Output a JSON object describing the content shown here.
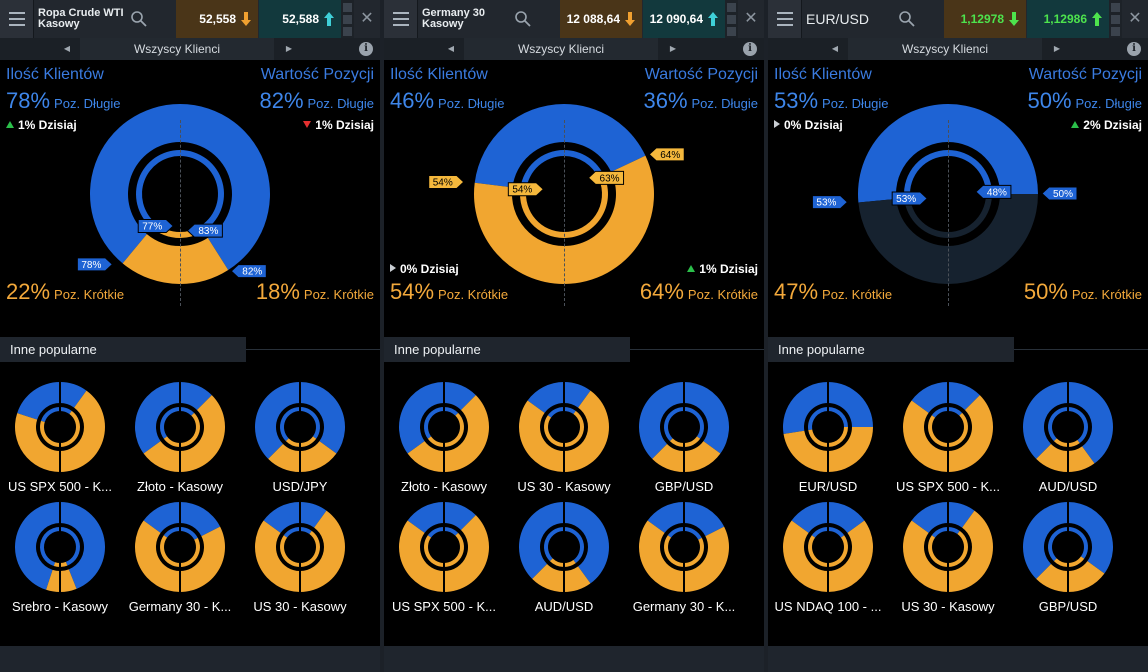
{
  "panels": [
    {
      "title": "Ropa Crude WTI Kasowy",
      "title_lines": [
        "Ropa Crude WTI",
        "Kasowy"
      ],
      "title_style": "small",
      "sell_price": "52,558",
      "buy_price": "52,588",
      "buy_color": "white",
      "sell_arrow": "orange-down",
      "buy_arrow": "teal-up",
      "client_filter": "Wszyscy Klienci",
      "left_header": "Ilość Klientów",
      "right_header": "Wartość Pozycji",
      "left_long_pct": "78%",
      "left_long_label": "Poz. Długie",
      "right_long_pct": "82%",
      "right_long_label": "Poz. Długie",
      "left_short_pct": "22%",
      "left_short_label": "Poz. Krótkie",
      "right_short_pct": "18%",
      "right_short_label": "Poz. Krótkie",
      "left_today": "1% Dzisiaj",
      "left_today_dir": "up",
      "left_today_pos": "top",
      "right_today": "1% Dzisiaj",
      "right_today_dir": "down",
      "right_today_pos": "top",
      "donut": {
        "outer_left_long": 78,
        "outer_right_long": 82,
        "inner_left_long": 77,
        "inner_right_long": 83,
        "inner_left_label": "77%",
        "inner_right_label": "83%",
        "outer_left_label": "78%",
        "outer_right_label": "82%",
        "color_long": "#1e63d4",
        "color_short": "#f1a630"
      },
      "other_title": "Inne popularne",
      "others": [
        {
          "label": "US SPX 500 - K...",
          "left_long": 40,
          "right_long": 20
        },
        {
          "label": "Złoto - Kasowy",
          "left_long": 70,
          "right_long": 25
        },
        {
          "label": "USD/JPY",
          "left_long": 75,
          "right_long": 70
        },
        {
          "label": "Srebro - Kasowy",
          "left_long": 90,
          "right_long": 88
        },
        {
          "label": "Germany 30 - K...",
          "left_long": 30,
          "right_long": 35
        },
        {
          "label": "US 30 - Kasowy",
          "left_long": 30,
          "right_long": 20
        }
      ]
    },
    {
      "title": "Germany 30 Kasowy",
      "title_lines": [
        "Germany 30",
        "Kasowy"
      ],
      "title_style": "small",
      "sell_price": "12 088,64",
      "buy_price": "12 090,64",
      "buy_color": "white",
      "sell_arrow": "orange-down",
      "buy_arrow": "teal-up",
      "client_filter": "Wszyscy Klienci",
      "left_header": "Ilość Klientów",
      "right_header": "Wartość Pozycji",
      "left_long_pct": "46%",
      "left_long_label": "Poz. Długie",
      "right_long_pct": "36%",
      "right_long_label": "Poz. Długie",
      "left_short_pct": "54%",
      "left_short_label": "Poz. Krótkie",
      "right_short_pct": "64%",
      "right_short_label": "Poz. Krótkie",
      "left_today": "0% Dzisiaj",
      "left_today_dir": "neutral",
      "left_today_pos": "bottom",
      "right_today": "1% Dzisiaj",
      "right_today_dir": "up",
      "right_today_pos": "bottom",
      "donut": {
        "outer_left_long": 46,
        "outer_right_long": 36,
        "inner_left_long": 46,
        "inner_right_long": 37,
        "inner_left_label": "54%",
        "inner_right_label": "63%",
        "outer_left_label": "54%",
        "outer_right_label": "64%",
        "color_long": "#1e63d4",
        "color_short": "#f1a630"
      },
      "other_title": "Inne popularne",
      "others": [
        {
          "label": "Złoto - Kasowy",
          "left_long": 70,
          "right_long": 25
        },
        {
          "label": "US 30 - Kasowy",
          "left_long": 30,
          "right_long": 20
        },
        {
          "label": "GBP/USD",
          "left_long": 75,
          "right_long": 70
        },
        {
          "label": "US SPX 500 - K...",
          "left_long": 30,
          "right_long": 25
        },
        {
          "label": "AUD/USD",
          "left_long": 75,
          "right_long": 80
        },
        {
          "label": "Germany 30 - K...",
          "left_long": 30,
          "right_long": 35
        }
      ]
    },
    {
      "title": "EUR/USD",
      "title_lines": [
        "EUR/USD"
      ],
      "title_style": "big",
      "sell_price": "1,12978",
      "buy_price": "1,12986",
      "buy_color": "green",
      "sell_arrow": "green-down",
      "buy_arrow": "green-up",
      "client_filter": "Wszyscy Klienci",
      "left_header": "Ilość Klientów",
      "right_header": "Wartość Pozycji",
      "left_long_pct": "53%",
      "left_long_label": "Poz. Długie",
      "right_long_pct": "50%",
      "right_long_label": "Poz. Długie",
      "left_short_pct": "47%",
      "left_short_label": "Poz. Krótkie",
      "right_short_pct": "50%",
      "right_short_label": "Poz. Krótkie",
      "left_today": "0% Dzisiaj",
      "left_today_dir": "neutral",
      "left_today_pos": "top",
      "right_today": "2% Dzisiaj",
      "right_today_dir": "up",
      "right_today_pos": "top",
      "donut": {
        "outer_left_long": 53,
        "outer_right_long": 50,
        "inner_left_long": 53,
        "inner_right_long": 48,
        "inner_left_label": "53%",
        "inner_right_label": "48%",
        "outer_left_label": "53%",
        "outer_right_label": "50%",
        "color_long": "#1e63d4",
        "color_short": "#16222f"
      },
      "other_title": "Inne popularne",
      "others": [
        {
          "label": "EUR/USD",
          "left_long": 55,
          "right_long": 50
        },
        {
          "label": "US SPX 500 - K...",
          "left_long": 30,
          "right_long": 25
        },
        {
          "label": "AUD/USD",
          "left_long": 75,
          "right_long": 80
        },
        {
          "label": "US NDAQ 100 - ...",
          "left_long": 30,
          "right_long": 30
        },
        {
          "label": "US 30 - Kasowy",
          "left_long": 30,
          "right_long": 20
        },
        {
          "label": "GBP/USD",
          "left_long": 75,
          "right_long": 70
        }
      ]
    }
  ]
}
